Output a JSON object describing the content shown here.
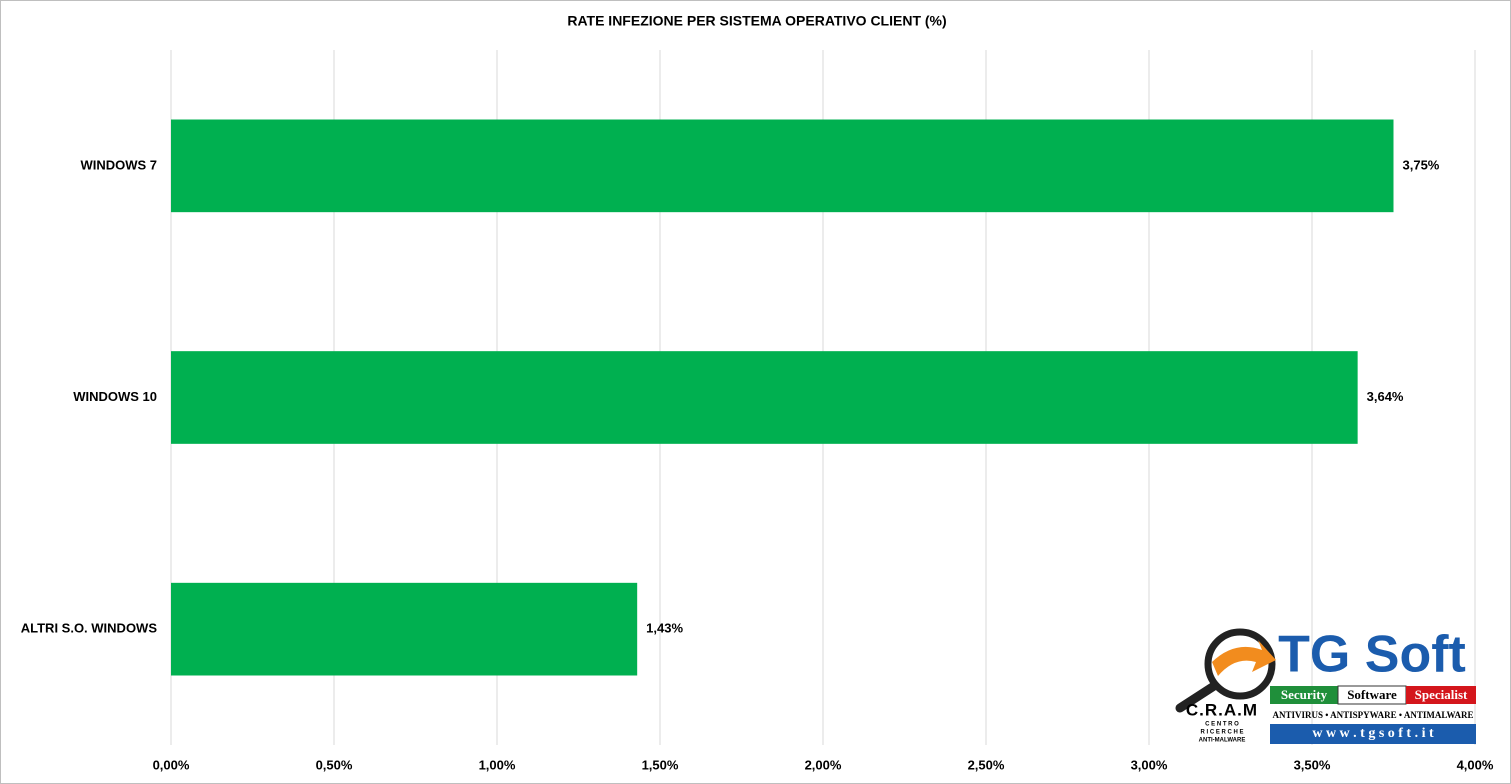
{
  "chart_data": {
    "type": "bar",
    "orientation": "horizontal",
    "title": "RATE INFEZIONE PER SISTEMA OPERATIVO CLIENT (%)",
    "categories": [
      "WINDOWS 7",
      "WINDOWS 10",
      "ALTRI S.O. WINDOWS"
    ],
    "values": [
      3.75,
      3.64,
      1.43
    ],
    "value_labels": [
      "3,75%",
      "3,64%",
      "1,43%"
    ],
    "color": "#00b050",
    "xlim": [
      0,
      4
    ],
    "xticks": [
      {
        "value": 0,
        "label": "0,00%"
      },
      {
        "value": 0.5,
        "label": "0,50%"
      },
      {
        "value": 1,
        "label": "1,00%"
      },
      {
        "value": 1.5,
        "label": "1,50%"
      },
      {
        "value": 2,
        "label": "2,00%"
      },
      {
        "value": 2.5,
        "label": "2,50%"
      },
      {
        "value": 3,
        "label": "3,00%"
      },
      {
        "value": 3.5,
        "label": "3,50%"
      },
      {
        "value": 4,
        "label": "4,00%"
      }
    ],
    "grid": true
  },
  "logo": {
    "brand": "TG Soft",
    "tags": [
      "Security",
      "Software",
      "Specialist"
    ],
    "products": "ANTIVIRUS • ANTISPYWARE • ANTIMALWARE",
    "url": "w w w . t g s o f t . i t",
    "cram": "C.R.A.M",
    "cram_sub": [
      "C E N T R O",
      "R I C E R C H E",
      "ANTI-MALWARE"
    ]
  }
}
